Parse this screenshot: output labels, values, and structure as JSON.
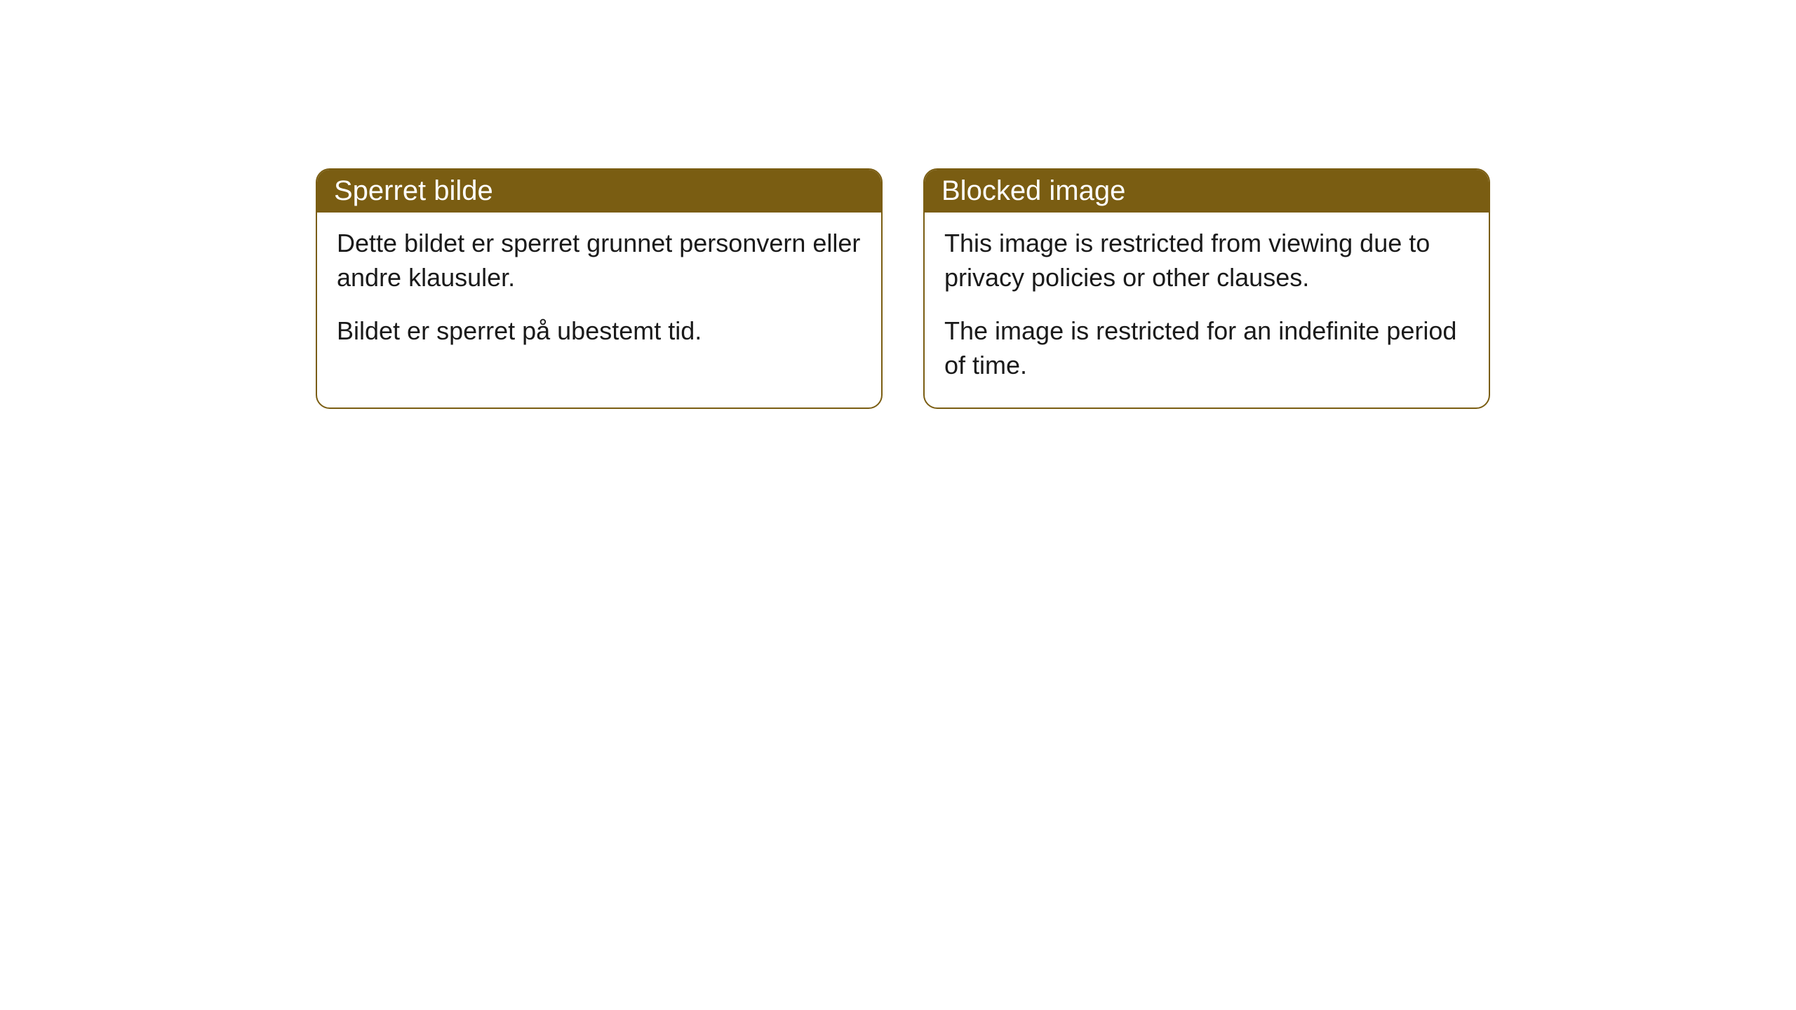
{
  "cards": [
    {
      "title": "Sperret bilde",
      "paragraph1": "Dette bildet er sperret grunnet personvern eller andre klausuler.",
      "paragraph2": "Bildet er sperret på ubestemt tid."
    },
    {
      "title": "Blocked image",
      "paragraph1": "This image is restricted from viewing due to privacy policies or other clauses.",
      "paragraph2": "The image is restricted for an indefinite period of time."
    }
  ],
  "style": {
    "header_bg_color": "#7a5d12",
    "header_text_color": "#ffffff",
    "border_color": "#7a5d12",
    "body_bg_color": "#ffffff",
    "body_text_color": "#1a1a1a",
    "border_radius": 20,
    "title_fontsize": 40,
    "body_fontsize": 36
  }
}
